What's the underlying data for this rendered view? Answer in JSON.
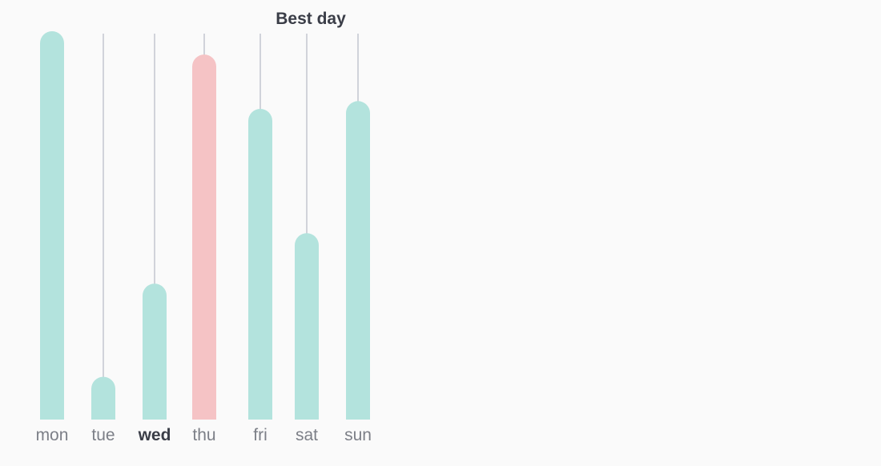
{
  "chart_data": {
    "type": "bar",
    "title": "Best day",
    "xlabel": "",
    "ylabel": "",
    "categories": [
      "mon",
      "tue",
      "wed",
      "thu",
      "fri",
      "sat",
      "sun"
    ],
    "values": [
      100,
      11,
      35,
      94,
      80,
      48,
      82
    ],
    "ylim": [
      0,
      100
    ],
    "highlighted_category": "wed",
    "best_category": "thu",
    "grid": false,
    "colors": {
      "bar": "#b3e3dd",
      "best_bar": "#f5c3c5",
      "stem": "#c3c6cf",
      "label": "#7c7f87",
      "label_highlight": "#3a3d47",
      "background": "#fafafa"
    }
  }
}
